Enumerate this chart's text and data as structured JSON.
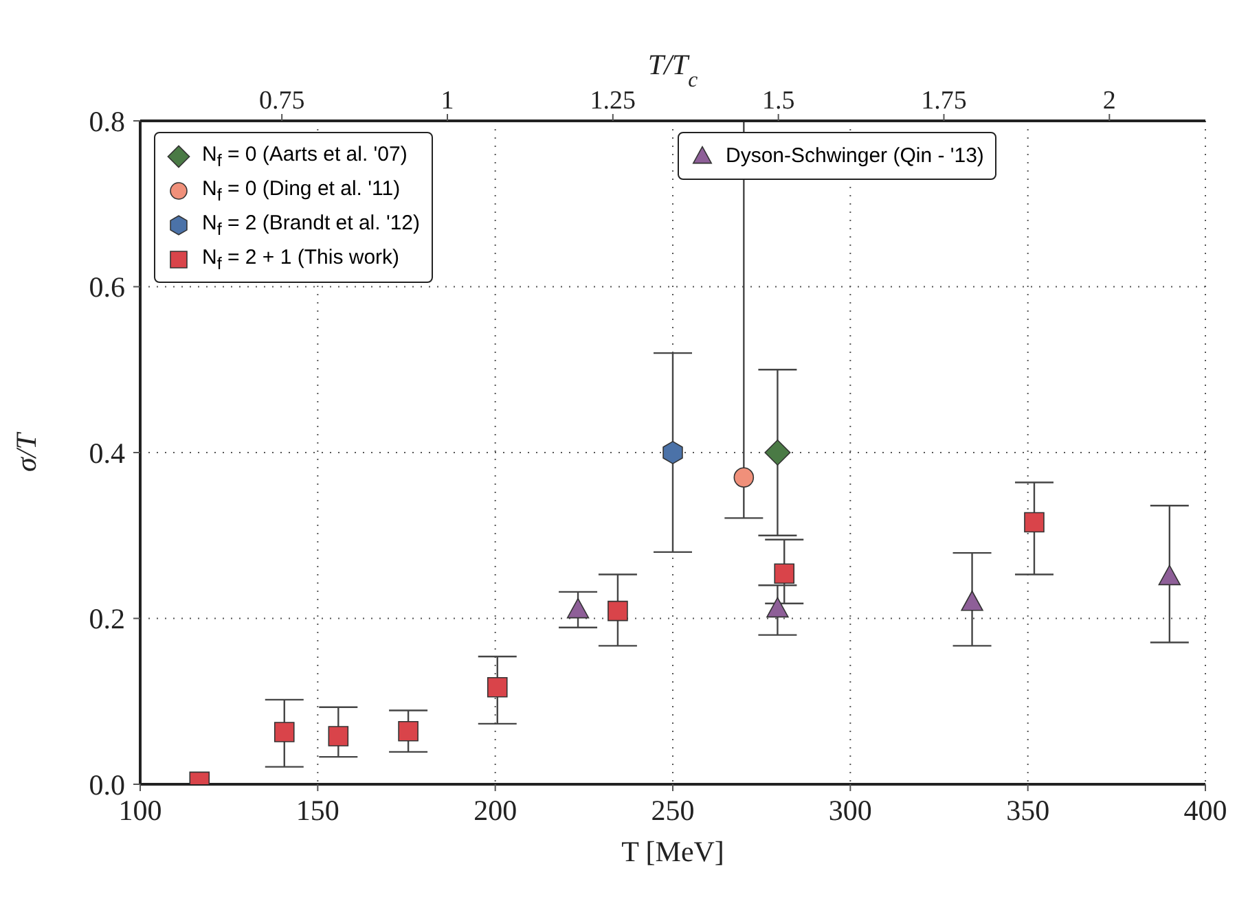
{
  "chart_data": {
    "type": "scatter",
    "xlabel": "T [MeV]",
    "ylabel": "σ/T",
    "x2label": "T/T$_{c}$",
    "xlim": [
      100,
      400
    ],
    "xticks": [
      100,
      150,
      200,
      250,
      300,
      350,
      400
    ],
    "ylim": [
      0,
      0.8
    ],
    "yticks": [
      {
        "value": 0,
        "label": "0.0"
      },
      0.2,
      0.4,
      0.6,
      0.8
    ],
    "x2lim": [
      0.536,
      2.145
    ],
    "x2ticks": [
      0.75,
      1,
      1.25,
      1.5,
      1.75,
      2
    ],
    "grid": true,
    "legend": "top",
    "series": [
      {
        "name": "N$_{f}$ = 0 (Aarts et al. '07)",
        "color": "#4a7a45",
        "marker": "diamond",
        "x": [
          279.5
        ],
        "values": [
          0.4
        ],
        "errors": [
          [
            0.3,
            0.5
          ]
        ]
      },
      {
        "name": "N$_{f}$ = 0 (Ding et al. '11)",
        "color": "#f0907a",
        "marker": "circle",
        "x": [
          270
        ],
        "values": [
          0.37
        ],
        "errors": [
          [
            0.321,
            0.8
          ]
        ]
      },
      {
        "name": "N$_{f}$ = 2 (Brandt et al. '12)",
        "color": "#4b72a8",
        "x": [
          250
        ],
        "values": [
          0.4
        ],
        "errors": [
          [
            0.28,
            0.52
          ]
        ]
      },
      {
        "name": "N$_{f}$ = 2 + 1 (This work)",
        "color": "#d9444a",
        "marker": "square",
        "x": [
          116.7,
          140.6,
          155.8,
          175.5,
          200.6,
          234.5,
          281.4,
          351.8
        ],
        "values": [
          0.003,
          0.063,
          0.058,
          0.064,
          0.117,
          0.209,
          0.254,
          0.316
        ],
        "errors": [
          null,
          [
            0.021,
            0.102
          ],
          [
            0.033,
            0.093
          ],
          [
            0.039,
            0.089
          ],
          [
            0.073,
            0.154
          ],
          [
            0.167,
            0.253
          ],
          [
            0.218,
            0.295
          ],
          [
            0.253,
            0.364
          ]
        ]
      },
      {
        "name": "Dyson-Schwinger (Qin - '13)",
        "color": "#8e5f98",
        "marker": "triangle",
        "x": [
          223.3,
          279.5,
          334.3,
          389.9
        ],
        "values": [
          0.21,
          0.211,
          0.219,
          0.25
        ],
        "errors": [
          [
            0.189,
            0.232
          ],
          [
            0.18,
            0.24
          ],
          [
            0.167,
            0.279
          ],
          [
            0.171,
            0.336
          ]
        ]
      }
    ]
  }
}
